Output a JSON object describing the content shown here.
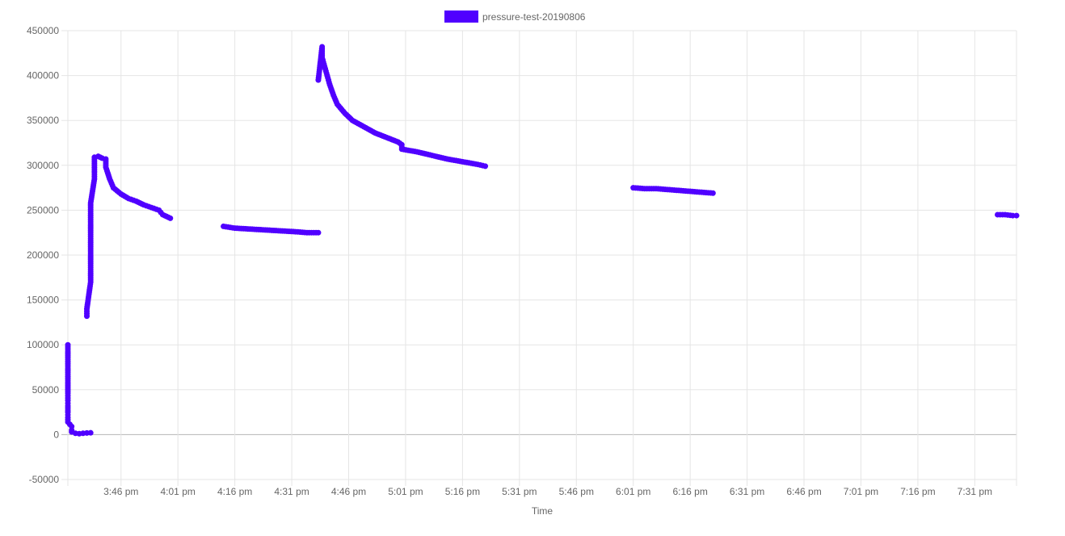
{
  "chart_data": {
    "type": "scatter",
    "title": "",
    "xlabel": "Time",
    "ylabel": "",
    "grid": true,
    "legend_position": "top-center",
    "series_color": "#5000ff",
    "gridline_color": "#e5e5e5",
    "zero_line_color": "#b5b5b5",
    "xlim": [
      "3:32 pm",
      "7:42 pm"
    ],
    "ylim": [
      -50000,
      450000
    ],
    "y_ticks": [
      -50000,
      0,
      50000,
      100000,
      150000,
      200000,
      250000,
      300000,
      350000,
      400000,
      450000
    ],
    "y_tick_labels": [
      "-50000",
      "0",
      "50000",
      "100000",
      "150000",
      "200000",
      "250000",
      "300000",
      "350000",
      "400000",
      "450000"
    ],
    "x_ticks": [
      "3:46 pm",
      "4:01 pm",
      "4:16 pm",
      "4:31 pm",
      "4:46 pm",
      "5:01 pm",
      "5:16 pm",
      "5:31 pm",
      "5:46 pm",
      "6:01 pm",
      "6:16 pm",
      "6:31 pm",
      "6:46 pm",
      "7:01 pm",
      "7:16 pm",
      "7:31 pm"
    ],
    "series": [
      {
        "name": "pressure-test-20190806",
        "segments": [
          [
            [
              "3:32 pm",
              100000
            ],
            [
              "3:32 pm",
              86000
            ],
            [
              "3:32 pm",
              67000
            ],
            [
              "3:32 pm",
              55000
            ],
            [
              "3:32 pm",
              46000
            ],
            [
              "3:32 pm",
              38000
            ],
            [
              "3:32 pm",
              32000
            ],
            [
              "3:32 pm",
              25000
            ],
            [
              "3:32 pm",
              19000
            ],
            [
              "3:32 pm",
              14000
            ],
            [
              "3:33 pm",
              9000
            ],
            [
              "3:33 pm",
              5000
            ],
            [
              "3:33 pm",
              3000
            ],
            [
              "3:34 pm",
              1500
            ],
            [
              "3:35 pm",
              1000
            ],
            [
              "3:36 pm",
              1500
            ],
            [
              "3:37 pm",
              1800
            ],
            [
              "3:38 pm",
              2000
            ]
          ],
          [
            [
              "3:37 pm",
              132000
            ],
            [
              "3:37 pm",
              140000
            ],
            [
              "3:38 pm",
              170000
            ],
            [
              "3:38 pm",
              200000
            ],
            [
              "3:38 pm",
              230000
            ],
            [
              "3:38 pm",
              258000
            ],
            [
              "3:39 pm",
              285000
            ],
            [
              "3:39 pm",
              300000
            ],
            [
              "3:39 pm",
              309000
            ],
            [
              "3:40 pm",
              310000
            ],
            [
              "3:41 pm",
              308000
            ],
            [
              "3:42 pm",
              307000
            ],
            [
              "3:42 pm",
              298000
            ],
            [
              "3:43 pm",
              285000
            ],
            [
              "3:44 pm",
              275000
            ],
            [
              "3:46 pm",
              268000
            ],
            [
              "3:48 pm",
              263000
            ],
            [
              "3:50 pm",
              260000
            ],
            [
              "3:52 pm",
              256000
            ],
            [
              "3:54 pm",
              253000
            ],
            [
              "3:56 pm",
              250000
            ],
            [
              "3:57 pm",
              245000
            ],
            [
              "3:58 pm",
              243000
            ],
            [
              "3:59 pm",
              241000
            ]
          ],
          [
            [
              "4:13 pm",
              232000
            ],
            [
              "4:16 pm",
              230000
            ],
            [
              "4:20 pm",
              229000
            ],
            [
              "4:24 pm",
              228000
            ],
            [
              "4:28 pm",
              227000
            ],
            [
              "4:32 pm",
              226000
            ],
            [
              "4:35 pm",
              225000
            ],
            [
              "4:38 pm",
              225000
            ]
          ],
          [
            [
              "4:38 pm",
              395000
            ],
            [
              "4:39 pm",
              432000
            ],
            [
              "4:39 pm",
              420000
            ],
            [
              "4:40 pm",
              405000
            ],
            [
              "4:41 pm",
              390000
            ],
            [
              "4:42 pm",
              378000
            ],
            [
              "4:43 pm",
              368000
            ],
            [
              "4:45 pm",
              358000
            ],
            [
              "4:47 pm",
              350000
            ],
            [
              "4:50 pm",
              343000
            ],
            [
              "4:53 pm",
              336000
            ],
            [
              "4:56 pm",
              331000
            ],
            [
              "4:59 pm",
              326000
            ],
            [
              "5:00 pm",
              323000
            ],
            [
              "5:00 pm",
              318000
            ],
            [
              "5:04 pm",
              315000
            ],
            [
              "5:08 pm",
              311000
            ],
            [
              "5:12 pm",
              307000
            ],
            [
              "5:16 pm",
              304000
            ],
            [
              "5:20 pm",
              301000
            ],
            [
              "5:22 pm",
              299000
            ]
          ],
          [
            [
              "6:01 pm",
              275000
            ],
            [
              "6:04 pm",
              274000
            ],
            [
              "6:07 pm",
              274000
            ],
            [
              "6:10 pm",
              273000
            ],
            [
              "6:13 pm",
              272000
            ],
            [
              "6:16 pm",
              271000
            ],
            [
              "6:19 pm",
              270000
            ],
            [
              "6:22 pm",
              269000
            ]
          ],
          [
            [
              "7:37 pm",
              245000
            ],
            [
              "7:39 pm",
              245000
            ],
            [
              "7:41 pm",
              244000
            ],
            [
              "7:42 pm",
              244000
            ]
          ]
        ]
      }
    ]
  }
}
